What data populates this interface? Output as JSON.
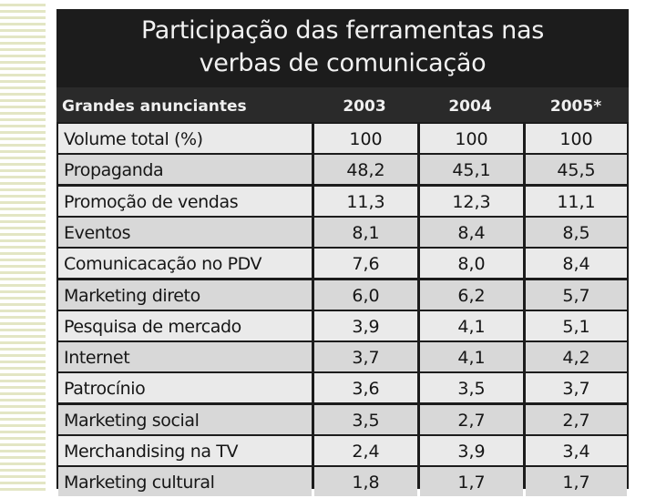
{
  "chart_data": {
    "type": "table",
    "title_lines": [
      "Participação das ferramentas nas",
      "verbas de comunicação"
    ],
    "columns": [
      "Grandes anunciantes",
      "2003",
      "2004",
      "2005*"
    ],
    "rows": [
      {
        "label": "Volume total (%)",
        "values": [
          "100",
          "100",
          "100"
        ]
      },
      {
        "label": "Propaganda",
        "values": [
          "48,2",
          "45,1",
          "45,5"
        ]
      },
      {
        "label": "Promoção de vendas",
        "values": [
          "11,3",
          "12,3",
          "11,1"
        ]
      },
      {
        "label": "Eventos",
        "values": [
          "8,1",
          "8,4",
          "8,5"
        ]
      },
      {
        "label": "Comunicacação no PDV",
        "values": [
          "7,6",
          "8,0",
          "8,4"
        ]
      },
      {
        "label": "Marketing direto",
        "values": [
          "6,0",
          "6,2",
          "5,7"
        ]
      },
      {
        "label": "Pesquisa de mercado",
        "values": [
          "3,9",
          "4,1",
          "5,1"
        ]
      },
      {
        "label": "Internet",
        "values": [
          "3,7",
          "4,1",
          "4,2"
        ]
      },
      {
        "label": "Patrocínio",
        "values": [
          "3,6",
          "3,5",
          "3,7"
        ]
      },
      {
        "label": "Marketing social",
        "values": [
          "3,5",
          "2,7",
          "2,7"
        ]
      },
      {
        "label": "Merchandising na TV",
        "values": [
          "2,4",
          "3,9",
          "3,4"
        ]
      },
      {
        "label": "Marketing cultural",
        "values": [
          "1,8",
          "1,7",
          "1,7"
        ]
      }
    ]
  }
}
